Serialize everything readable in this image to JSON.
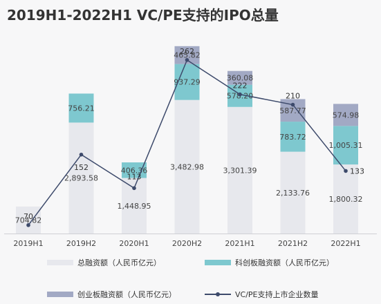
{
  "chart_data": {
    "type": "bar",
    "title": "2019H1-2022H1 VC/PE支持的IPO总量",
    "categories": [
      "2019H1",
      "2019H2",
      "2020H1",
      "2020H2",
      "2021H1",
      "2021H2",
      "2022H1"
    ],
    "series": [
      {
        "name": "总融资额（人民币亿元）",
        "kind": "bar",
        "color": "#e7e8ed",
        "values": [
          704.82,
          2893.58,
          1448.95,
          3482.98,
          3301.39,
          2133.76,
          1800.32
        ],
        "labels": [
          "704.82",
          "2,893.58",
          "1,448.95",
          "3,482.98",
          "3,301.39",
          "2,133.76",
          "1,800.32"
        ]
      },
      {
        "name": "科创板融资额（人民币亿元）",
        "kind": "bar",
        "color": "#7ec8cf",
        "values": [
          0,
          756.21,
          406.36,
          937.29,
          578.2,
          783.72,
          1005.31
        ],
        "labels": [
          "",
          "756.21",
          "406.36",
          "937.29",
          "578.20",
          "783.72",
          "1,005.31"
        ]
      },
      {
        "name": "创业板融资额（人民币亿元）",
        "kind": "bar",
        "color": "#a2a9c4",
        "values": [
          0,
          0,
          0,
          465.82,
          360.08,
          587.77,
          574.98
        ],
        "labels": [
          "",
          "",
          "",
          "465.82",
          "360.08",
          "587.77",
          "574.98"
        ]
      },
      {
        "name": "VC/PE支持上市企业数量",
        "kind": "line",
        "color": "#3d4a6b",
        "values": [
          70,
          152,
          113,
          262,
          222,
          210,
          133
        ],
        "labels": [
          "70",
          "152",
          "113",
          "262",
          "222",
          "210",
          "133"
        ]
      }
    ],
    "legend_position": "bottom",
    "grid": false
  }
}
